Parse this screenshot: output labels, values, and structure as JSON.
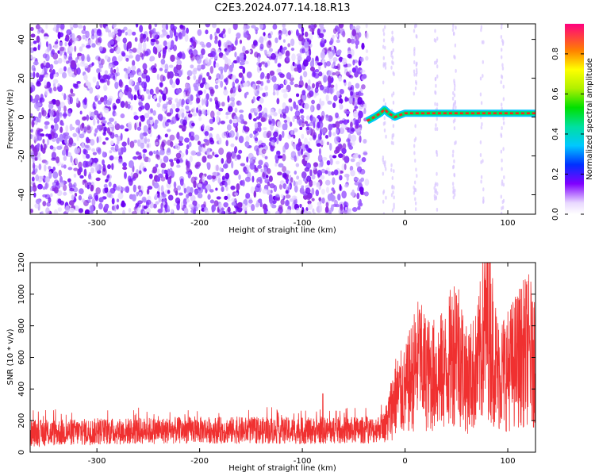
{
  "title": "C2E3.2024.077.14.18.R13",
  "colors": {
    "scatter": "#7b1fff",
    "snr_line": "#f03030",
    "band_outer": "#00c8ff",
    "band_mid": "#00e060",
    "band_core": "#ff2020"
  },
  "chart_data": [
    {
      "type": "heatmap",
      "xlabel": "Height of straight line (km)",
      "ylabel": "Frequency (Hz)",
      "xlim": [
        -365,
        127
      ],
      "ylim": [
        -50,
        48
      ],
      "xticks": [
        -300,
        -200,
        -100,
        0,
        100
      ],
      "yticks": [
        -40,
        -20,
        0,
        20,
        40
      ],
      "xtick_labels": [
        "-300",
        "-200",
        "-100",
        "0",
        "100"
      ],
      "ytick_labels": [
        "-40",
        "-20",
        "0",
        "20",
        "40"
      ],
      "noise_region_x": [
        -365,
        -37
      ],
      "signal_band": {
        "x_start": -37,
        "x_end": 127,
        "frequency_points": [
          [
            -37,
            -2
          ],
          [
            -30,
            0
          ],
          [
            -24,
            2
          ],
          [
            -20,
            4
          ],
          [
            -16,
            2
          ],
          [
            -10,
            0
          ],
          [
            -5,
            1
          ],
          [
            0,
            2
          ],
          [
            127,
            2
          ]
        ]
      },
      "colorbar": {
        "label": "Normalized spectral amplitude",
        "range": [
          0,
          0.95
        ],
        "ticks": [
          0.0,
          0.2,
          0.4,
          0.6,
          0.8
        ],
        "tick_labels": [
          "0.0",
          "0.2",
          "0.4",
          "0.6",
          "0.8"
        ]
      }
    },
    {
      "type": "line",
      "xlabel": "Height of straight line (km)",
      "ylabel": "SNR (10 * v/v)",
      "xlim": [
        -365,
        127
      ],
      "ylim": [
        0,
        1200
      ],
      "xticks": [
        -300,
        -200,
        -100,
        0,
        100
      ],
      "yticks": [
        0,
        200,
        400,
        600,
        800,
        1000,
        1200
      ],
      "xtick_labels": [
        "-300",
        "-200",
        "-100",
        "0",
        "100"
      ],
      "ytick_labels": [
        "0",
        "200",
        "400",
        "600",
        "800",
        "1000",
        "1200"
      ],
      "series": [
        {
          "description_points": [
            [
              -365,
              120
            ],
            [
              -300,
              130
            ],
            [
              -200,
              140
            ],
            [
              -100,
              135
            ],
            [
              -30,
              140
            ],
            [
              -18,
              180
            ],
            [
              -10,
              350
            ],
            [
              0,
              380
            ],
            [
              12,
              560
            ],
            [
              25,
              480
            ],
            [
              40,
              520
            ],
            [
              50,
              700
            ],
            [
              60,
              450
            ],
            [
              70,
              520
            ],
            [
              80,
              850
            ],
            [
              90,
              500
            ],
            [
              100,
              520
            ],
            [
              110,
              600
            ],
            [
              120,
              650
            ],
            [
              127,
              600
            ]
          ],
          "peaks": [
            [
              -80,
              370
            ],
            [
              14,
              900
            ],
            [
              50,
              990
            ],
            [
              80,
              1200
            ],
            [
              124,
              950
            ]
          ]
        }
      ]
    }
  ]
}
